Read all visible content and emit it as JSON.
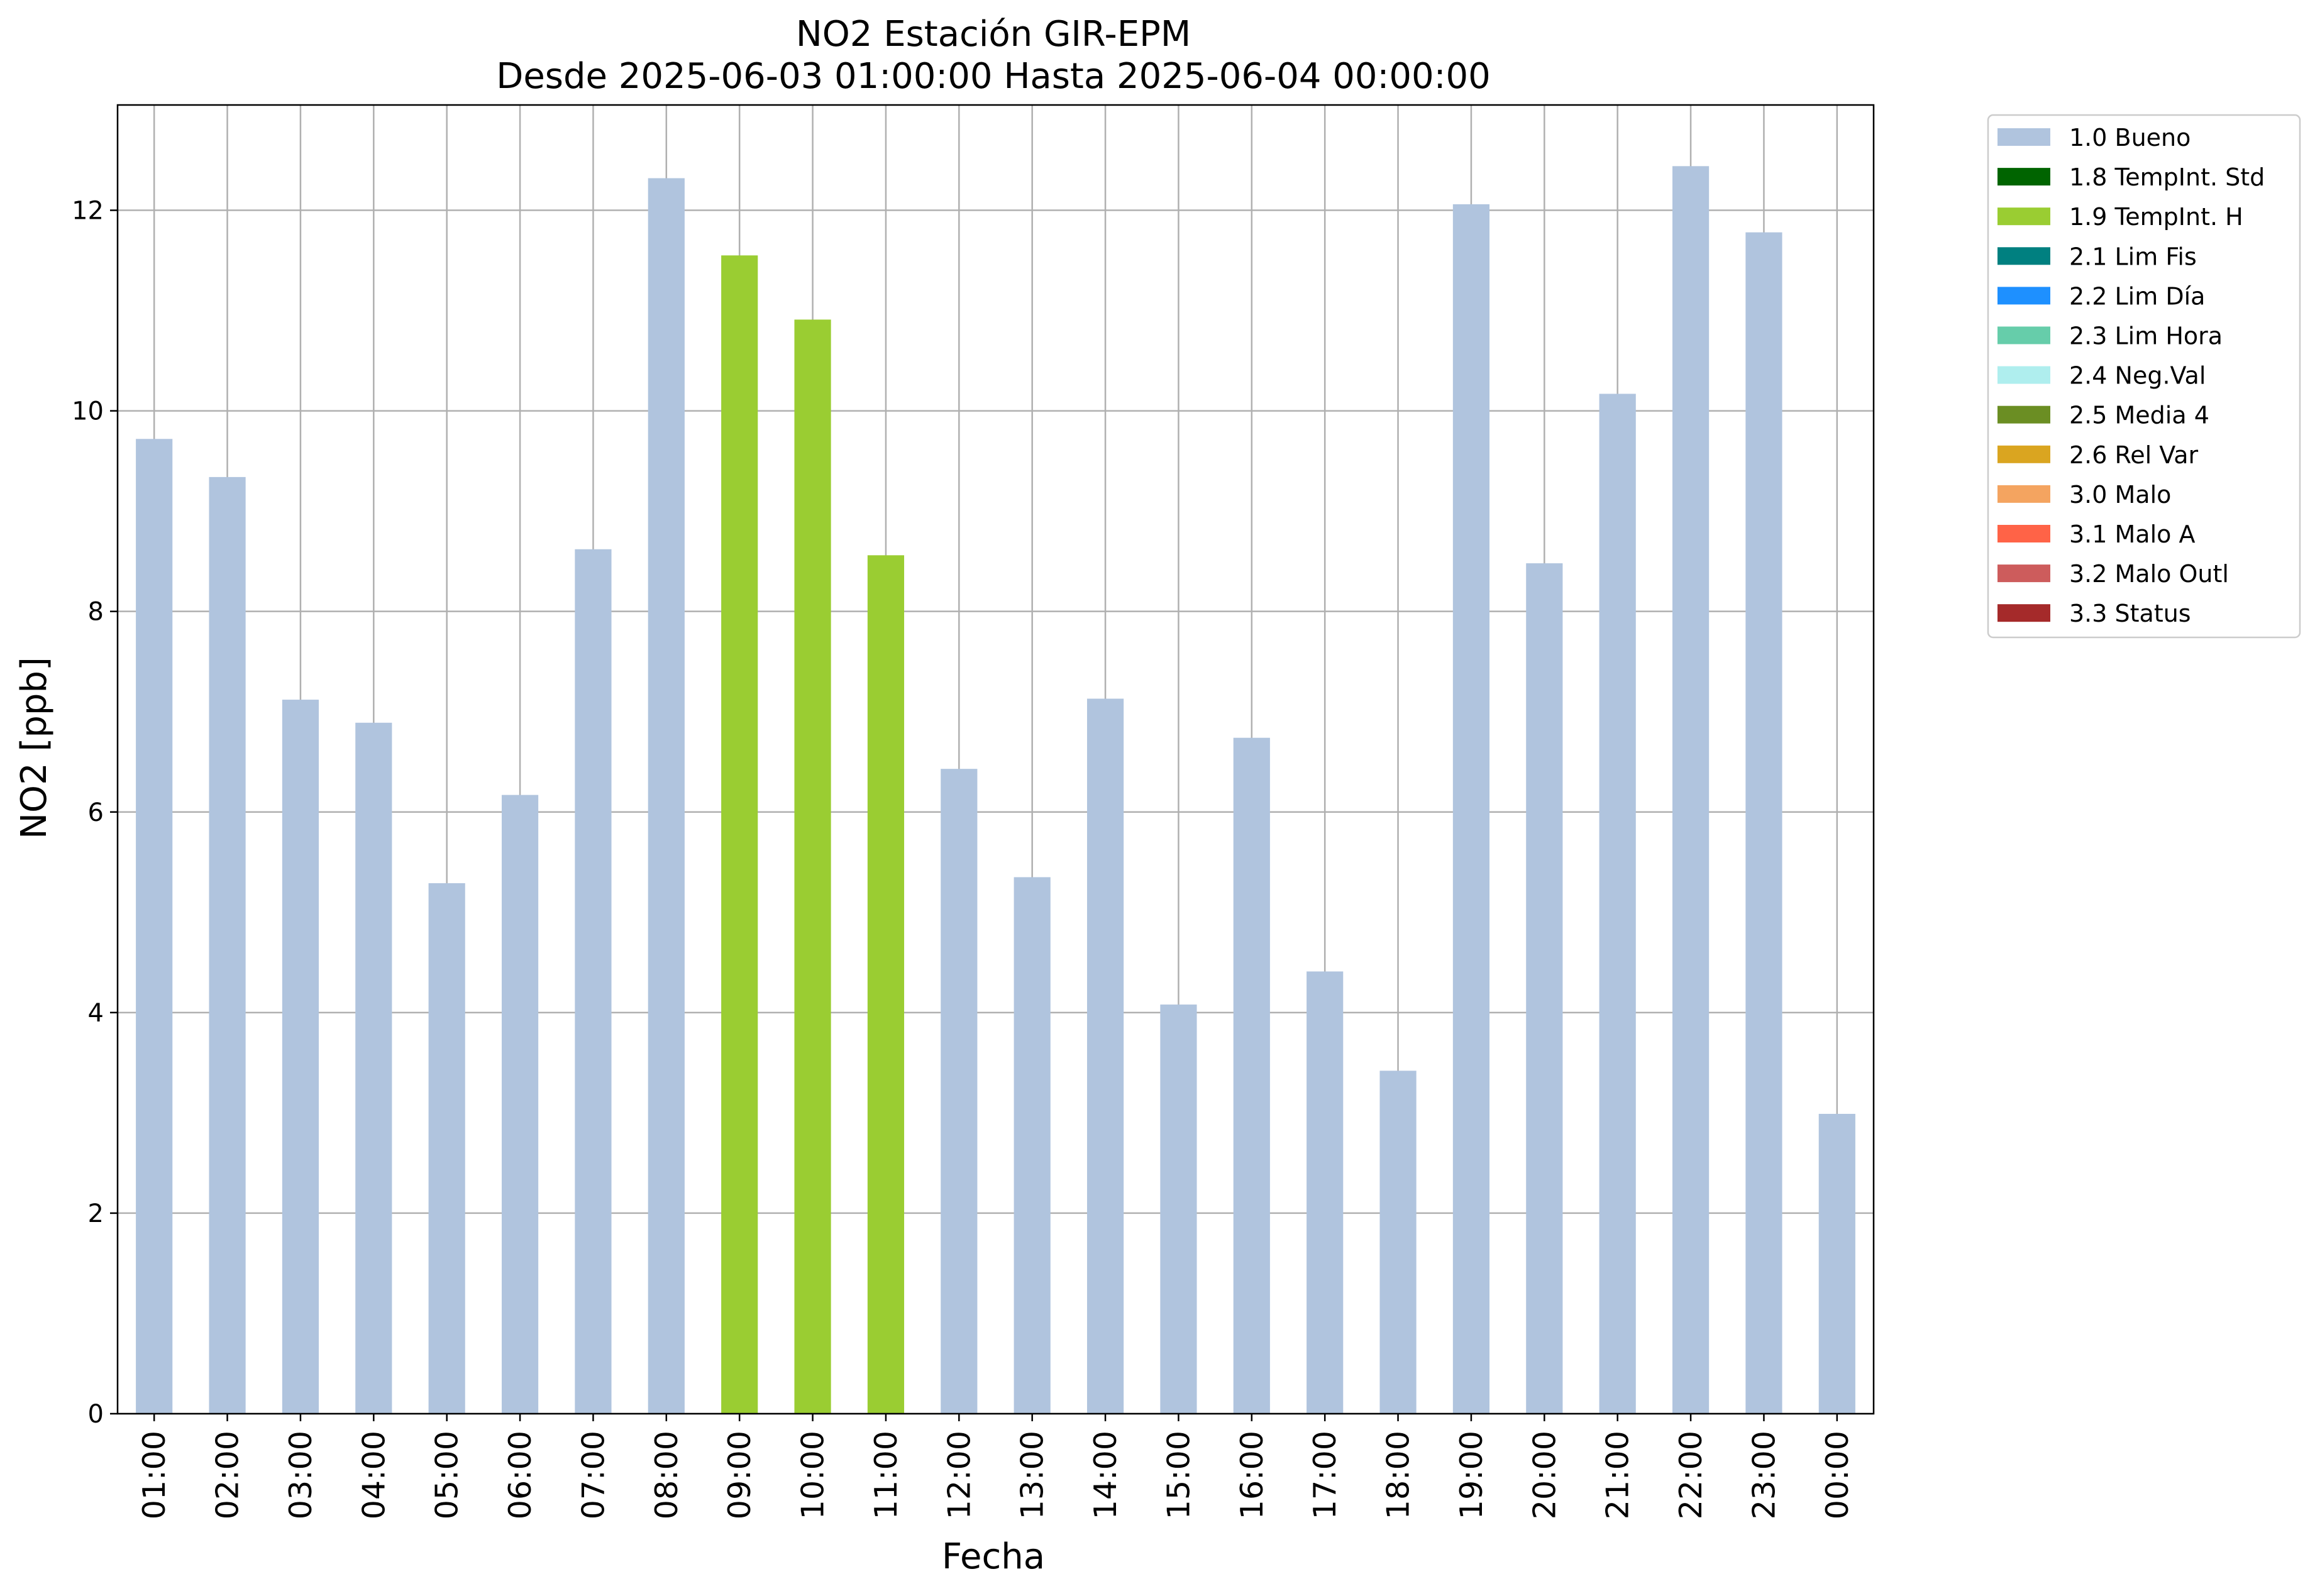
{
  "chart_data": {
    "type": "bar",
    "title": "NO2 Estación GIR-EPM",
    "subtitle": "Desde 2025-06-03 01:00:00 Hasta 2025-06-04 00:00:00",
    "xlabel": "Fecha",
    "ylabel": "NO2 [ppb]",
    "ylim": [
      0,
      13.05
    ],
    "yticks": [
      0,
      2,
      4,
      6,
      8,
      10,
      12
    ],
    "grid": true,
    "legend_position": "outside-top-right",
    "categories": [
      "01:00",
      "02:00",
      "03:00",
      "04:00",
      "05:00",
      "06:00",
      "07:00",
      "08:00",
      "09:00",
      "10:00",
      "11:00",
      "12:00",
      "13:00",
      "14:00",
      "15:00",
      "16:00",
      "17:00",
      "18:00",
      "19:00",
      "20:00",
      "21:00",
      "22:00",
      "23:00",
      "00:00"
    ],
    "values": [
      9.72,
      9.34,
      7.12,
      6.89,
      5.29,
      6.17,
      8.62,
      12.32,
      11.55,
      10.91,
      8.56,
      6.43,
      5.35,
      7.13,
      4.08,
      6.74,
      4.41,
      3.42,
      12.06,
      8.48,
      10.17,
      12.44,
      11.78,
      2.99
    ],
    "flags": [
      "1.0 Bueno",
      "1.0 Bueno",
      "1.0 Bueno",
      "1.0 Bueno",
      "1.0 Bueno",
      "1.0 Bueno",
      "1.0 Bueno",
      "1.0 Bueno",
      "1.9 TempInt. H",
      "1.9 TempInt. H",
      "1.9 TempInt. H",
      "1.0 Bueno",
      "1.0 Bueno",
      "1.0 Bueno",
      "1.0 Bueno",
      "1.0 Bueno",
      "1.0 Bueno",
      "1.0 Bueno",
      "1.0 Bueno",
      "1.0 Bueno",
      "1.0 Bueno",
      "1.0 Bueno",
      "1.0 Bueno",
      "1.0 Bueno"
    ],
    "legend": [
      {
        "label": "1.0 Bueno",
        "color": "#b0c4de"
      },
      {
        "label": "1.8 TempInt. Std",
        "color": "#006400"
      },
      {
        "label": "1.9 TempInt. H",
        "color": "#9acd32"
      },
      {
        "label": "2.1 Lim Fis",
        "color": "#008080"
      },
      {
        "label": "2.2 Lim Día",
        "color": "#1e90ff"
      },
      {
        "label": "2.3 Lim Hora",
        "color": "#66cdaa"
      },
      {
        "label": "2.4 Neg.Val",
        "color": "#afeeee"
      },
      {
        "label": "2.5 Media 4",
        "color": "#6b8e23"
      },
      {
        "label": "2.6 Rel Var",
        "color": "#daa520"
      },
      {
        "label": "3.0 Malo",
        "color": "#f4a460"
      },
      {
        "label": "3.1 Malo A",
        "color": "#ff6347"
      },
      {
        "label": "3.2 Malo Outl",
        "color": "#cd5c5c"
      },
      {
        "label": "3.3 Status",
        "color": "#a52a2a"
      }
    ]
  }
}
